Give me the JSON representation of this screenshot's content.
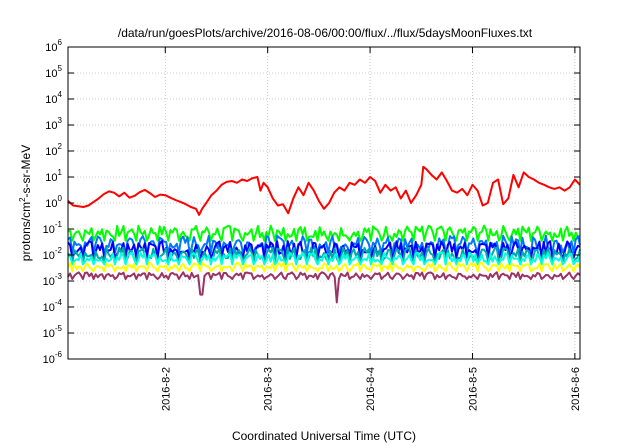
{
  "chart_data": {
    "type": "line",
    "title": "/data/run/goesPlots/archive/2016-08-06/00:00/flux/../flux/5daysMoonFluxes.txt",
    "xlabel": "Coordinated Universal Time (UTC)",
    "ylabel": "protons/cm2-s-sr-MeV",
    "ylabel_parts": {
      "base": "protons/cm",
      "sup": "2",
      "rest": "-s-sr-MeV"
    },
    "yscale": "log",
    "ylim_exponent": [
      -6,
      6
    ],
    "ytick_labels": [
      {
        "base": "10",
        "exp": "6"
      },
      {
        "base": "10",
        "exp": "5"
      },
      {
        "base": "10",
        "exp": "4"
      },
      {
        "base": "10",
        "exp": "3"
      },
      {
        "base": "10",
        "exp": "2"
      },
      {
        "base": "10",
        "exp": "1"
      },
      {
        "base": "10",
        "exp": "0"
      },
      {
        "base": "10",
        "exp": "-1"
      },
      {
        "base": "10",
        "exp": "-2"
      },
      {
        "base": "10",
        "exp": "-3"
      },
      {
        "base": "10",
        "exp": "-4"
      },
      {
        "base": "10",
        "exp": "-5"
      },
      {
        "base": "10",
        "exp": "-6"
      }
    ],
    "xlim_days": [
      1.05,
      6.05
    ],
    "x_ticks": [
      {
        "day": 2,
        "label": "2016-8-2"
      },
      {
        "day": 3,
        "label": "2016-8-3"
      },
      {
        "day": 4,
        "label": "2016-8-4"
      },
      {
        "day": 5,
        "label": "2016-8-5"
      },
      {
        "day": 6,
        "label": "2016-8-6"
      }
    ],
    "grid": true,
    "series": [
      {
        "color": "#ff0000",
        "values": [
          [
            1.05,
            1.2
          ],
          [
            1.1,
            0.8
          ],
          [
            1.15,
            0.75
          ],
          [
            1.2,
            0.7
          ],
          [
            1.25,
            0.8
          ],
          [
            1.3,
            1.1
          ],
          [
            1.35,
            1.5
          ],
          [
            1.4,
            2.2
          ],
          [
            1.45,
            2.8
          ],
          [
            1.5,
            2.5
          ],
          [
            1.55,
            1.8
          ],
          [
            1.6,
            2.5
          ],
          [
            1.65,
            1.6
          ],
          [
            1.7,
            1.9
          ],
          [
            1.75,
            2.6
          ],
          [
            1.8,
            3.2
          ],
          [
            1.85,
            2.4
          ],
          [
            1.9,
            1.7
          ],
          [
            1.95,
            2.1
          ],
          [
            2.0,
            2.0
          ],
          [
            2.05,
            1.6
          ],
          [
            2.1,
            1.3
          ],
          [
            2.15,
            1.1
          ],
          [
            2.2,
            0.9
          ],
          [
            2.25,
            0.7
          ],
          [
            2.3,
            0.6
          ],
          [
            2.33,
            0.35
          ],
          [
            2.36,
            0.6
          ],
          [
            2.4,
            1.0
          ],
          [
            2.45,
            2.0
          ],
          [
            2.5,
            3.0
          ],
          [
            2.55,
            5.0
          ],
          [
            2.6,
            6.5
          ],
          [
            2.65,
            7.0
          ],
          [
            2.7,
            6.0
          ],
          [
            2.75,
            8.0
          ],
          [
            2.8,
            7.0
          ],
          [
            2.85,
            9.0
          ],
          [
            2.9,
            10.0
          ],
          [
            2.93,
            3.0
          ],
          [
            2.96,
            6.0
          ],
          [
            3.0,
            4.0
          ],
          [
            3.05,
            1.5
          ],
          [
            3.1,
            0.8
          ],
          [
            3.15,
            0.9
          ],
          [
            3.2,
            0.4
          ],
          [
            3.25,
            1.5
          ],
          [
            3.3,
            4.0
          ],
          [
            3.35,
            2.0
          ],
          [
            3.4,
            6.0
          ],
          [
            3.45,
            3.0
          ],
          [
            3.5,
            1.2
          ],
          [
            3.55,
            0.6
          ],
          [
            3.6,
            1.0
          ],
          [
            3.65,
            2.5
          ],
          [
            3.7,
            4.0
          ],
          [
            3.75,
            3.0
          ],
          [
            3.8,
            6.0
          ],
          [
            3.85,
            5.0
          ],
          [
            3.9,
            8.0
          ],
          [
            3.95,
            6.0
          ],
          [
            4.0,
            10.0
          ],
          [
            4.05,
            7.0
          ],
          [
            4.1,
            2.5
          ],
          [
            4.15,
            5.0
          ],
          [
            4.2,
            3.0
          ],
          [
            4.25,
            4.0
          ],
          [
            4.3,
            1.5
          ],
          [
            4.35,
            3.0
          ],
          [
            4.4,
            1.0
          ],
          [
            4.45,
            2.0
          ],
          [
            4.5,
            5.0
          ],
          [
            4.52,
            25.0
          ],
          [
            4.55,
            20.0
          ],
          [
            4.6,
            12.0
          ],
          [
            4.65,
            8.0
          ],
          [
            4.7,
            15.0
          ],
          [
            4.75,
            7.0
          ],
          [
            4.8,
            3.0
          ],
          [
            4.85,
            2.5
          ],
          [
            4.9,
            3.5
          ],
          [
            4.95,
            2.0
          ],
          [
            5.0,
            5.0
          ],
          [
            5.05,
            3.0
          ],
          [
            5.1,
            0.8
          ],
          [
            5.15,
            1.0
          ],
          [
            5.2,
            6.0
          ],
          [
            5.25,
            8.0
          ],
          [
            5.3,
            0.9
          ],
          [
            5.35,
            1.5
          ],
          [
            5.4,
            12.0
          ],
          [
            5.45,
            4.0
          ],
          [
            5.5,
            15.0
          ],
          [
            5.55,
            10.0
          ],
          [
            5.6,
            8.0
          ],
          [
            5.65,
            6.0
          ],
          [
            5.7,
            5.0
          ],
          [
            5.75,
            4.0
          ],
          [
            5.8,
            3.5
          ],
          [
            5.85,
            4.0
          ],
          [
            5.9,
            3.0
          ],
          [
            5.95,
            4.0
          ],
          [
            6.0,
            8.0
          ],
          [
            6.05,
            5.0
          ]
        ]
      },
      {
        "color": "#00ff00",
        "base": 0.09,
        "spread": 0.45,
        "dips": []
      },
      {
        "color": "#0077ff",
        "base": 0.035,
        "spread": 0.5,
        "dips": []
      },
      {
        "color": "#0000ff",
        "base": 0.022,
        "spread": 0.5,
        "dips": []
      },
      {
        "color": "#00aaaa",
        "base": 0.013,
        "spread": 0.45,
        "dips": []
      },
      {
        "color": "#00ffdd",
        "base": 0.009,
        "spread": 0.35,
        "dips": []
      },
      {
        "color": "#ffff00",
        "base": 0.004,
        "spread": 0.25,
        "dips": []
      },
      {
        "color": "#993366",
        "base": 0.0018,
        "spread": 0.2,
        "dips": [
          [
            2.35,
            0.0003
          ],
          [
            3.68,
            0.00015
          ]
        ]
      }
    ]
  }
}
